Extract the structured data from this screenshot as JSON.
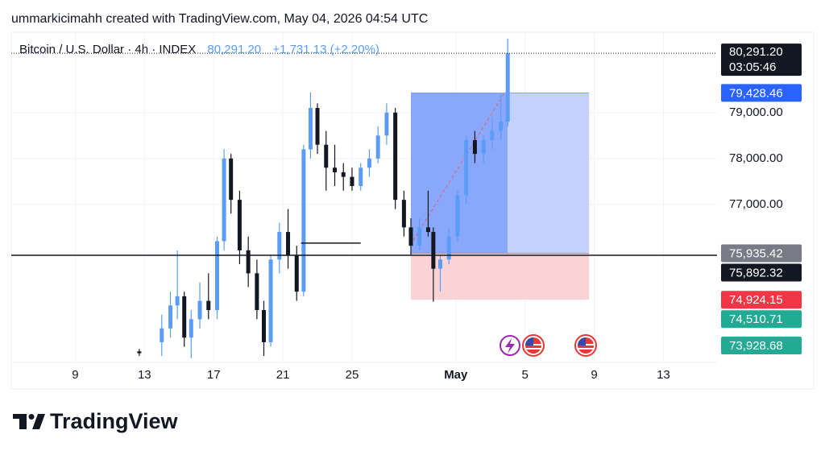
{
  "header": "ummarkicimahh created with TradingView.com, May 04, 2026 04:54 UTC",
  "chart_data": {
    "type": "candlestick",
    "title": "Bitcoin / U.S. Dollar · 4h · INDEX",
    "last_price": {
      "value": 80291.2,
      "label": "80,291.20"
    },
    "change": {
      "value": 1731.13,
      "label": "+1,731.13 (+2.20%)"
    },
    "countdown": "03:05:46",
    "x": [
      12.7,
      14.0,
      14.5,
      14.9,
      15.3,
      15.7,
      16.2,
      16.7,
      17.2,
      17.6,
      18.0,
      18.5,
      19.0,
      19.5,
      19.9,
      20.3,
      20.8,
      21.3,
      21.8,
      22.2,
      22.6,
      23.0,
      23.5,
      24.0,
      24.5,
      25.0,
      25.5,
      26.0,
      26.5,
      27.0,
      27.5,
      28.0,
      28.4,
      28.9,
      29.4,
      29.7,
      30.1,
      30.6,
      31.1,
      31.6,
      32.1,
      32.6,
      33.1,
      33.6,
      34.0
    ],
    "open": [
      73800,
      74000,
      74300,
      74800,
      75000,
      74100,
      74500,
      74900,
      74700,
      76200,
      78000,
      77100,
      76000,
      75500,
      74700,
      74000,
      75800,
      76400,
      75900,
      75100,
      78200,
      79100,
      78300,
      77800,
      77700,
      77600,
      77400,
      77800,
      78000,
      78500,
      79000,
      77100,
      76500,
      76100,
      76500,
      76400,
      75600,
      75800,
      76300,
      77200,
      78400,
      78100,
      78400,
      78600,
      78800
    ],
    "high": [
      73850,
      74600,
      75100,
      76000,
      75100,
      74700,
      75300,
      75500,
      76300,
      78200,
      78100,
      77300,
      76300,
      75800,
      74900,
      75900,
      76600,
      76900,
      76100,
      78300,
      79440,
      79200,
      78600,
      78300,
      77900,
      77800,
      77900,
      78200,
      78700,
      79200,
      79100,
      77300,
      76700,
      76700,
      77300,
      76500,
      75900,
      76500,
      77300,
      78500,
      78600,
      78500,
      78900,
      79400,
      80610
    ],
    "low": [
      73700,
      73700,
      74100,
      74500,
      73900,
      73650,
      74300,
      74500,
      74500,
      76000,
      76800,
      75700,
      75200,
      74500,
      73700,
      73900,
      75500,
      75600,
      74900,
      75000,
      78000,
      78100,
      77300,
      77400,
      77300,
      77300,
      77300,
      77600,
      77900,
      78300,
      76900,
      76300,
      75900,
      76000,
      76300,
      74880,
      75100,
      75700,
      76200,
      77000,
      77900,
      77900,
      78200,
      78400,
      78700
    ],
    "close": [
      73760,
      74300,
      74800,
      75000,
      74100,
      74500,
      74900,
      74700,
      76200,
      78000,
      77100,
      76000,
      75500,
      74700,
      74000,
      75800,
      76400,
      75900,
      75100,
      78200,
      79100,
      78300,
      77800,
      77700,
      77600,
      77400,
      77800,
      78000,
      78500,
      79000,
      77100,
      76500,
      76100,
      76500,
      76400,
      75600,
      75800,
      76300,
      77200,
      78400,
      78100,
      78400,
      78600,
      78800,
      80291.2
    ],
    "up_color": "#5b9cf6",
    "down_color": "#131722",
    "xlim": [
      5.3,
      46.1
    ],
    "xticks": [
      9,
      13,
      17,
      21,
      25,
      {
        "value": 31,
        "label": "May"
      },
      {
        "value": 35,
        "label": "5"
      },
      {
        "value": 39,
        "label": "9"
      },
      {
        "value": 43,
        "label": "13"
      }
    ],
    "ylim": [
      73560,
      80750
    ],
    "yticks": [
      {
        "value": 79000,
        "label": "79,000.00"
      },
      {
        "value": 78000,
        "label": "78,000.00"
      },
      {
        "value": 77000,
        "label": "77,000.00"
      }
    ],
    "grid": true,
    "position": {
      "target": {
        "value": 79428.46,
        "label": "79,428.46"
      },
      "entry": {
        "value": 75935.42,
        "label": "75,935.42"
      },
      "stop": {
        "value": 74924.15,
        "label": "74,924.15"
      },
      "x_start": 28.4,
      "x_end": 38.7
    },
    "horizontal_line": {
      "value": 75892.32,
      "label": "75,892.32"
    },
    "price_labels": [
      {
        "value": 74510.71,
        "label": "74,510.71",
        "color": "#22ab94"
      },
      {
        "value": 73928.68,
        "label": "73,928.68",
        "color": "#22ab94"
      }
    ],
    "trend_segment": {
      "x": [
        22.05,
        25.5
      ],
      "y": 76158
    }
  },
  "footer": "TradingView"
}
